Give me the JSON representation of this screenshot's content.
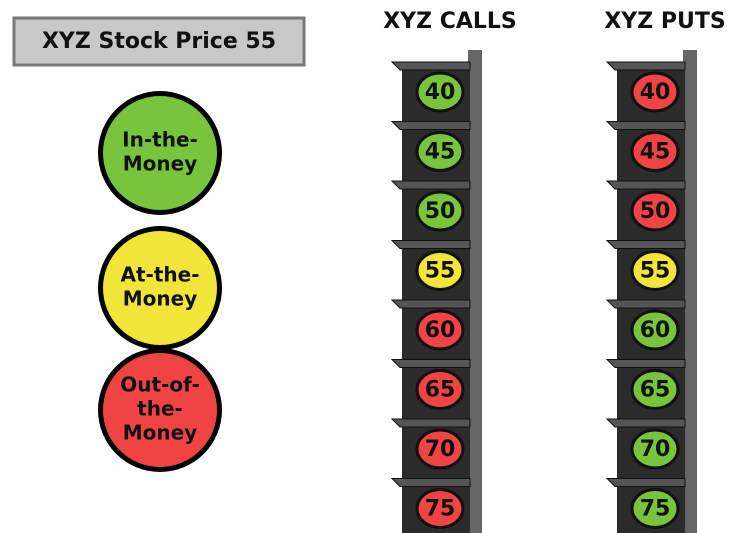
{
  "header": {
    "title": "XYZ Stock Price 55"
  },
  "legend": [
    {
      "lines": [
        "In-the-",
        "Money"
      ],
      "color": "#78c43c"
    },
    {
      "lines": [
        "At-the-",
        "Money"
      ],
      "color": "#f2e53a"
    },
    {
      "lines": [
        "Out-of-",
        "the-",
        "Money"
      ],
      "color": "#f04444"
    }
  ],
  "columns": [
    {
      "title": "XYZ CALLS",
      "strikes": [
        {
          "label": "40",
          "color": "#78c43c"
        },
        {
          "label": "45",
          "color": "#78c43c"
        },
        {
          "label": "50",
          "color": "#78c43c"
        },
        {
          "label": "55",
          "color": "#f2e53a"
        },
        {
          "label": "60",
          "color": "#f04444"
        },
        {
          "label": "65",
          "color": "#f04444"
        },
        {
          "label": "70",
          "color": "#f04444"
        },
        {
          "label": "75",
          "color": "#f04444"
        }
      ]
    },
    {
      "title": "XYZ PUTS",
      "strikes": [
        {
          "label": "40",
          "color": "#f04444"
        },
        {
          "label": "45",
          "color": "#f04444"
        },
        {
          "label": "50",
          "color": "#f04444"
        },
        {
          "label": "55",
          "color": "#f2e53a"
        },
        {
          "label": "60",
          "color": "#78c43c"
        },
        {
          "label": "65",
          "color": "#78c43c"
        },
        {
          "label": "70",
          "color": "#78c43c"
        },
        {
          "label": "75",
          "color": "#78c43c"
        }
      ]
    }
  ]
}
